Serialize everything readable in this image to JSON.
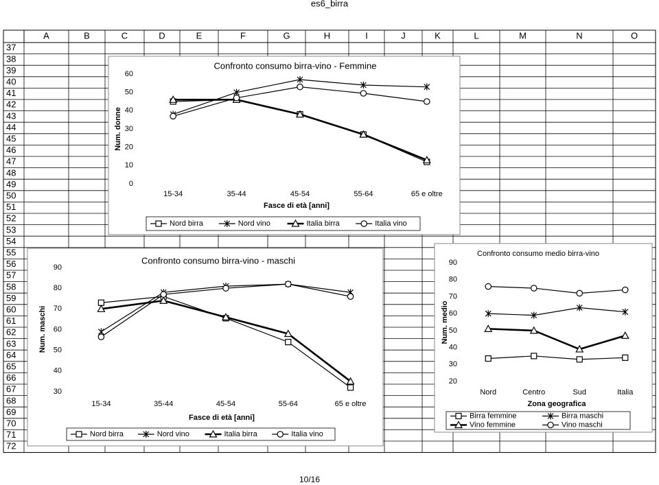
{
  "page": {
    "title": "es6_birra",
    "footer": "10/16"
  },
  "sheet": {
    "columns": [
      "A",
      "B",
      "C",
      "D",
      "E",
      "F",
      "G",
      "H",
      "I",
      "J",
      "K",
      "L",
      "M",
      "N",
      "O"
    ],
    "rows": [
      37,
      38,
      39,
      40,
      41,
      42,
      43,
      44,
      45,
      46,
      47,
      48,
      49,
      50,
      51,
      52,
      53,
      54,
      55,
      56,
      57,
      58,
      59,
      60,
      61,
      62,
      63,
      64,
      65,
      66,
      67,
      68,
      69,
      70,
      71,
      72
    ]
  },
  "chart_data": [
    {
      "type": "line",
      "title": "Confronto consumo birra-vino - Femmine",
      "x_label": "Fasce di età [anni]",
      "y_label": "Num. donne",
      "categories": [
        "15-34",
        "35-44",
        "45-54",
        "55-64",
        "65 e oltre"
      ],
      "ylim": [
        0,
        60
      ],
      "yticks": [
        0,
        10,
        20,
        30,
        40,
        50,
        60
      ],
      "grid": false,
      "legend": "bottom",
      "series": [
        {
          "name": "Nord birra",
          "color": "#000000",
          "marker": "square",
          "line_width": 1.2,
          "values": [
            45,
            46,
            38,
            27,
            12
          ]
        },
        {
          "name": "Nord vino",
          "color": "#000000",
          "marker": "star",
          "line_width": 1.2,
          "values": [
            38,
            50,
            57,
            54,
            53
          ]
        },
        {
          "name": "Italia birra",
          "color": "#000000",
          "marker": "triangle",
          "line_width": 2.6,
          "values": [
            46,
            46,
            38,
            27,
            13
          ]
        },
        {
          "name": "Italia vino",
          "color": "#000000",
          "marker": "circle",
          "line_width": 1.2,
          "values": [
            37,
            47,
            53,
            49.5,
            45
          ]
        }
      ]
    },
    {
      "type": "line",
      "title": "Confronto consumo birra-vino - maschi",
      "x_label": "Fasce di età [anni]",
      "y_label": "Num. maschi",
      "categories": [
        "15-34",
        "35-44",
        "45-54",
        "55-64",
        "65 e oltre"
      ],
      "ylim": [
        30,
        90
      ],
      "yticks": [
        30,
        40,
        50,
        60,
        70,
        80,
        90
      ],
      "grid": false,
      "legend": "bottom",
      "series": [
        {
          "name": "Nord birra",
          "color": "#000000",
          "marker": "square",
          "line_width": 1.2,
          "values": [
            73,
            76,
            65.5,
            54,
            32
          ]
        },
        {
          "name": "Nord vino",
          "color": "#000000",
          "marker": "star",
          "line_width": 1.2,
          "values": [
            59,
            78,
            81,
            82,
            78
          ]
        },
        {
          "name": "Italia birra",
          "color": "#000000",
          "marker": "triangle",
          "line_width": 2.6,
          "values": [
            70,
            74,
            66,
            58,
            35
          ]
        },
        {
          "name": "Italia vino",
          "color": "#000000",
          "marker": "circle",
          "line_width": 1.2,
          "values": [
            56.5,
            77,
            80,
            82,
            76
          ]
        }
      ]
    },
    {
      "type": "line",
      "title": "Confronto consumo medio birra-vino",
      "x_label": "Zona geografica",
      "y_label": "Num. medio",
      "categories": [
        "Nord",
        "Centro",
        "Sud",
        "Italia"
      ],
      "ylim": [
        20,
        90
      ],
      "yticks": [
        20,
        30,
        40,
        50,
        60,
        70,
        80,
        90
      ],
      "grid": false,
      "legend": "bottom",
      "series": [
        {
          "name": "Birra femmine",
          "color": "#000000",
          "marker": "square",
          "line_width": 1.2,
          "values": [
            33.5,
            35,
            33,
            34
          ]
        },
        {
          "name": "Birra maschi",
          "color": "#000000",
          "marker": "star",
          "line_width": 1.2,
          "values": [
            60,
            59,
            63.5,
            61
          ]
        },
        {
          "name": "Vino femmine",
          "color": "#000000",
          "marker": "triangle",
          "line_width": 2.6,
          "values": [
            51,
            50,
            39,
            47
          ]
        },
        {
          "name": "Vino maschi",
          "color": "#000000",
          "marker": "circle",
          "line_width": 1.2,
          "values": [
            76,
            75,
            72,
            74
          ]
        }
      ]
    }
  ]
}
